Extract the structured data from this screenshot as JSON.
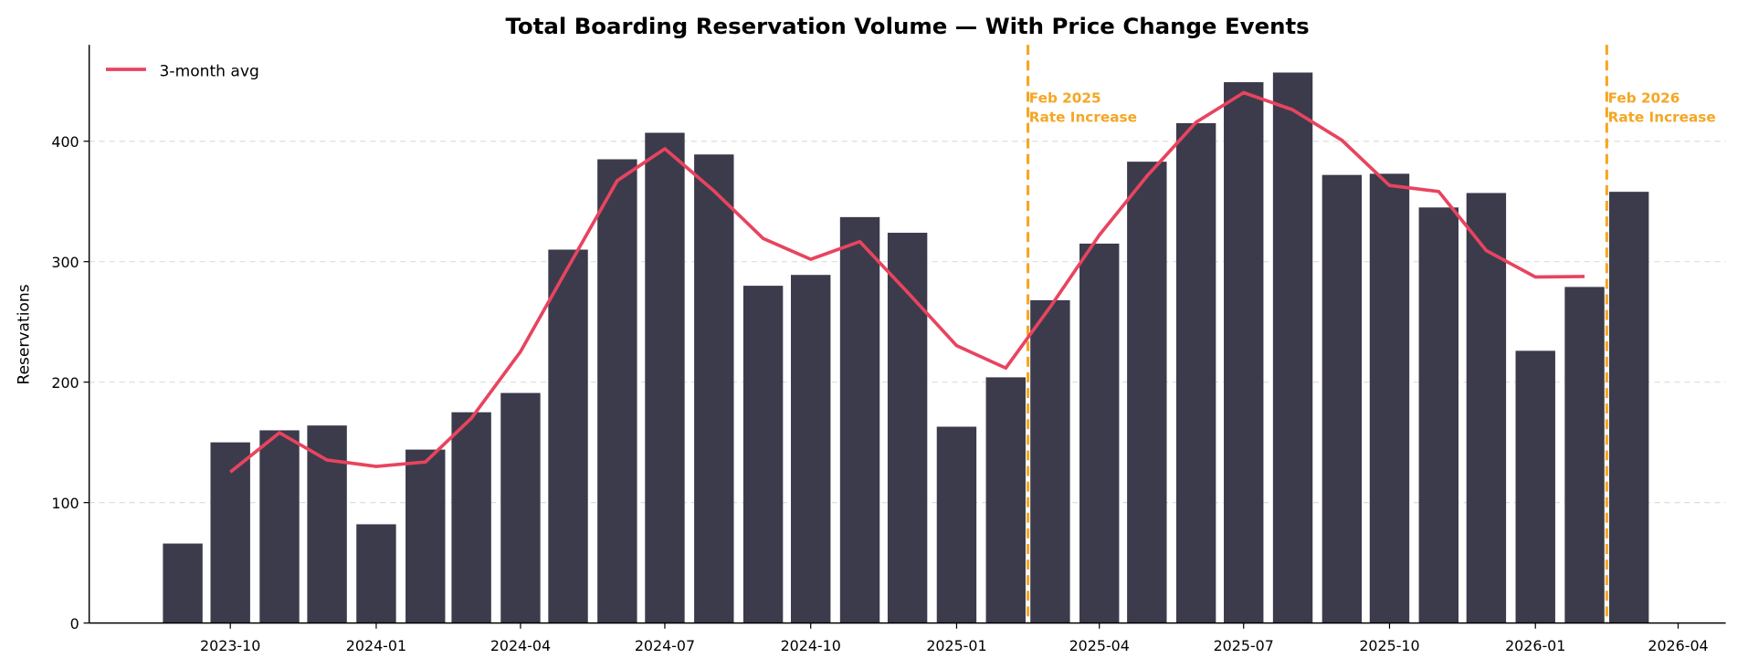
{
  "chart_data": {
    "type": "bar",
    "title": "Total Boarding Reservation Volume — With Price Change Events",
    "xlabel": "",
    "ylabel": "Reservations",
    "ylim": [
      0,
      480
    ],
    "xlim": [
      "2023-07-04",
      "2026-05-01"
    ],
    "yticks": [
      0,
      100,
      200,
      300,
      400
    ],
    "xticks": [
      "2023-10",
      "2024-01",
      "2024-04",
      "2024-07",
      "2024-10",
      "2025-01",
      "2025-04",
      "2025-07",
      "2025-10",
      "2026-01",
      "2026-04"
    ],
    "grid": "horizontal dashed",
    "legend_position": "top-left",
    "colors": {
      "bars": "#3c3b4c",
      "line": "#e8445f",
      "events": "#f5a623"
    },
    "months": [
      "2023-09",
      "2023-10",
      "2023-11",
      "2023-12",
      "2024-01",
      "2024-02",
      "2024-03",
      "2024-04",
      "2024-05",
      "2024-06",
      "2024-07",
      "2024-08",
      "2024-09",
      "2024-10",
      "2024-11",
      "2024-12",
      "2025-01",
      "2025-02",
      "2025-03",
      "2025-04",
      "2025-05",
      "2025-06",
      "2025-07",
      "2025-08",
      "2025-09",
      "2025-10",
      "2025-11",
      "2025-12",
      "2026-01",
      "2026-02",
      "2026-03"
    ],
    "values": [
      66,
      150,
      160,
      164,
      82,
      144,
      175,
      191,
      310,
      385,
      407,
      389,
      280,
      289,
      337,
      324,
      163,
      204,
      268,
      315,
      383,
      415,
      449,
      457,
      372,
      373,
      345,
      357,
      226,
      279,
      358
    ],
    "series": [
      {
        "name": "3-month avg",
        "type": "line",
        "months": [
          "2023-10",
          "2023-11",
          "2023-12",
          "2024-01",
          "2024-02",
          "2024-03",
          "2024-04",
          "2024-05",
          "2024-06",
          "2024-07",
          "2024-08",
          "2024-09",
          "2024-10",
          "2024-11",
          "2024-12",
          "2025-01",
          "2025-02",
          "2025-03",
          "2025-04",
          "2025-05",
          "2025-06",
          "2025-07",
          "2025-08",
          "2025-09",
          "2025-10",
          "2025-11",
          "2025-12",
          "2026-01",
          "2026-02"
        ],
        "values": [
          125.3,
          158.0,
          135.3,
          130.0,
          133.7,
          170.0,
          225.3,
          295.3,
          367.3,
          393.7,
          358.7,
          319.3,
          302.0,
          316.7,
          274.7,
          230.3,
          211.7,
          262.3,
          322.0,
          371.0,
          415.7,
          440.3,
          426.0,
          400.7,
          363.3,
          358.3,
          309.3,
          287.3,
          287.7
        ]
      }
    ],
    "events": [
      {
        "date": "2025-02-15",
        "label_line1": "Feb 2025",
        "label_line2": "Rate Increase"
      },
      {
        "date": "2026-02-15",
        "label_line1": "Feb 2026",
        "label_line2": "Rate Increase"
      }
    ]
  }
}
